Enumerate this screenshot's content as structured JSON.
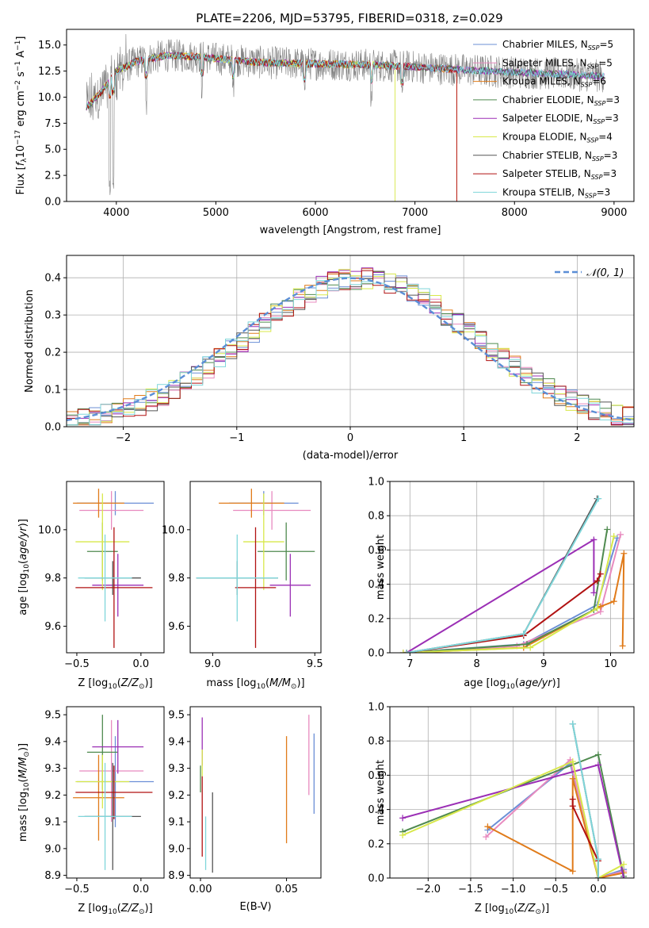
{
  "figure_title": "PLATE=2206, MJD=53795, FIBERID=0318, z=0.029",
  "legend_models": [
    {
      "name": "Chabrier MILES, N",
      "sub": "SSP",
      "tail": "=5",
      "color": "#6b8fd6"
    },
    {
      "name": "Salpeter MILES, N",
      "sub": "SSP",
      "tail": "=5",
      "color": "#e88bbf"
    },
    {
      "name": "Kroupa MILES, N",
      "sub": "SSP",
      "tail": "=6",
      "color": "#e07b1a"
    },
    {
      "name": "Chabrier ELODIE, N",
      "sub": "SSP",
      "tail": "=3",
      "color": "#4f8a4f"
    },
    {
      "name": "Salpeter ELODIE, N",
      "sub": "SSP",
      "tail": "=3",
      "color": "#9b2fb5"
    },
    {
      "name": "Kroupa ELODIE, N",
      "sub": "SSP",
      "tail": "=4",
      "color": "#d8e84a"
    },
    {
      "name": "Chabrier STELIB, N",
      "sub": "SSP",
      "tail": "=3",
      "color": "#555555"
    },
    {
      "name": "Salpeter STELIB, N",
      "sub": "SSP",
      "tail": "=3",
      "color": "#b11212"
    },
    {
      "name": "Kroupa STELIB, N",
      "sub": "SSP",
      "tail": "=3",
      "color": "#7fd6da"
    }
  ],
  "chart_data": [
    {
      "id": "spectrum",
      "type": "line",
      "xlabel": "wavelength [Angstrom, rest frame]",
      "ylabel": "Flux [f_λ 10^-17 erg cm^-2 s^-1 A^-1]",
      "xlim": [
        3500,
        9200
      ],
      "ylim": [
        0,
        16.5
      ],
      "xticks": [
        4000,
        5000,
        6000,
        7000,
        8000,
        9000
      ],
      "yticks": [
        0.0,
        2.5,
        5.0,
        7.5,
        10.0,
        12.5,
        15.0
      ],
      "data_range": [
        3700,
        8900
      ],
      "data_anchors": {
        "x": [
          3700,
          3850,
          4000,
          4200,
          4500,
          4800,
          5100,
          5500,
          6000,
          6500,
          7000,
          7500,
          8000,
          8500,
          8900
        ],
        "y": [
          9.0,
          10.5,
          12.5,
          13.4,
          14.0,
          13.9,
          13.6,
          13.3,
          13.2,
          13.1,
          12.9,
          12.6,
          12.4,
          12.2,
          12.0
        ]
      },
      "model_ends": [
        8900,
        8900,
        7420,
        8900,
        8900,
        6800,
        8900,
        7420,
        8900
      ],
      "grid": false
    },
    {
      "id": "residual-histogram",
      "type": "histogram",
      "xlabel": "(data-model)/error",
      "ylabel": "Normed distribution",
      "xlim": [
        -2.5,
        2.5
      ],
      "ylim": [
        0,
        0.46
      ],
      "xticks": [
        -2,
        -1,
        0,
        1,
        2
      ],
      "yticks": [
        0.0,
        0.1,
        0.2,
        0.3,
        0.4
      ],
      "bin_width": 0.1,
      "reference": {
        "label": "𝒩(0, 1)",
        "mean": 0,
        "sigma": 1,
        "color": "#5b8ed6"
      },
      "grid": true
    },
    {
      "id": "age-vs-z",
      "type": "errorbar",
      "xlabel": "Z [log10(Z/Z☉)]",
      "ylabel": "age [log10(age/yr)]",
      "xlim": [
        -0.58,
        0.18
      ],
      "ylim": [
        9.49,
        10.2
      ],
      "xticks": [
        -0.5,
        0.0
      ],
      "yticks": [
        9.6,
        9.8,
        10.0
      ],
      "points": [
        {
          "x": -0.2,
          "xerr": 0.3,
          "y": 10.11,
          "yerr": 0.05
        },
        {
          "x": -0.23,
          "xerr": 0.25,
          "y": 10.08,
          "yerr": 0.08
        },
        {
          "x": -0.33,
          "xerr": 0.2,
          "y": 10.11,
          "yerr": 0.06
        },
        {
          "x": -0.3,
          "xerr": 0.12,
          "y": 9.91,
          "yerr": 0.12
        },
        {
          "x": -0.18,
          "xerr": 0.2,
          "y": 9.77,
          "yerr": 0.13
        },
        {
          "x": -0.3,
          "xerr": 0.21,
          "y": 9.95,
          "yerr": 0.2
        },
        {
          "x": -0.22,
          "xerr": 0.22,
          "y": 9.8,
          "yerr": 0.07
        },
        {
          "x": -0.21,
          "xerr": 0.3,
          "y": 9.76,
          "yerr": 0.25
        },
        {
          "x": -0.28,
          "xerr": 0.21,
          "y": 9.8,
          "yerr": 0.18
        }
      ]
    },
    {
      "id": "age-vs-mass",
      "type": "errorbar",
      "xlabel": "mass [log10(M/M☉)]",
      "ylabel": "",
      "xlim": [
        8.89,
        9.53
      ],
      "ylim": [
        9.49,
        10.2
      ],
      "xticks": [
        9.0,
        9.5
      ],
      "yticks": [
        9.6,
        9.8,
        10.0
      ],
      "points": [
        {
          "x": 9.25,
          "xerr": 0.17,
          "y": 10.11,
          "yerr": 0.05
        },
        {
          "x": 9.29,
          "xerr": 0.19,
          "y": 10.08,
          "yerr": 0.08
        },
        {
          "x": 9.19,
          "xerr": 0.16,
          "y": 10.11,
          "yerr": 0.06
        },
        {
          "x": 9.36,
          "xerr": 0.14,
          "y": 9.91,
          "yerr": 0.12
        },
        {
          "x": 9.38,
          "xerr": 0.1,
          "y": 9.77,
          "yerr": 0.13
        },
        {
          "x": 9.25,
          "xerr": 0.1,
          "y": 9.95,
          "yerr": 0.2
        },
        {
          "x": 9.12,
          "xerr": 0.2,
          "y": 9.8,
          "yerr": 0.07
        },
        {
          "x": 9.21,
          "xerr": 0.1,
          "y": 9.76,
          "yerr": 0.25
        },
        {
          "x": 9.12,
          "xerr": 0.2,
          "y": 9.8,
          "yerr": 0.18
        }
      ]
    },
    {
      "id": "mass-weight-vs-age",
      "type": "line",
      "xlabel": "age [log10(age/yr)]",
      "ylabel": "mass weight",
      "xlim": [
        6.7,
        10.35
      ],
      "ylim": [
        0,
        1.0
      ],
      "xticks": [
        7,
        8,
        9,
        10
      ],
      "yticks": [
        0.0,
        0.2,
        0.4,
        0.6,
        0.8,
        1.0
      ],
      "grid": true,
      "series": [
        {
          "model": 0,
          "x": [
            6.9,
            8.7,
            9.8,
            10.1
          ],
          "y": [
            0.0,
            0.05,
            0.28,
            0.67
          ]
        },
        {
          "model": 1,
          "x": [
            6.9,
            8.6,
            9.85,
            10.15
          ],
          "y": [
            0.0,
            0.04,
            0.24,
            0.69
          ]
        },
        {
          "model": 2,
          "x": [
            7.0,
            8.7,
            9.85,
            10.05,
            10.2,
            10.18
          ],
          "y": [
            0.0,
            0.03,
            0.27,
            0.3,
            0.58,
            0.04
          ]
        },
        {
          "model": 3,
          "x": [
            6.95,
            8.75,
            9.75,
            9.95
          ],
          "y": [
            0.0,
            0.05,
            0.25,
            0.72
          ]
        },
        {
          "model": 4,
          "x": [
            6.95,
            9.75,
            9.75
          ],
          "y": [
            0.0,
            0.66,
            0.35
          ]
        },
        {
          "model": 5,
          "x": [
            6.9,
            8.8,
            9.8,
            10.05
          ],
          "y": [
            0.0,
            0.03,
            0.26,
            0.68
          ]
        },
        {
          "model": 6,
          "x": [
            6.95,
            8.7,
            9.8
          ],
          "y": [
            0.0,
            0.11,
            0.9
          ]
        },
        {
          "model": 7,
          "x": [
            6.95,
            8.7,
            9.8,
            9.85
          ],
          "y": [
            0.0,
            0.1,
            0.42,
            0.46
          ]
        },
        {
          "model": 8,
          "x": [
            6.95,
            8.7,
            9.82
          ],
          "y": [
            0.0,
            0.11,
            0.9
          ]
        }
      ]
    },
    {
      "id": "mass-vs-z",
      "type": "errorbar",
      "xlabel": "Z [log10(Z/Z☉)]",
      "ylabel": "mass [log10(M/M☉)]",
      "xlim": [
        -0.58,
        0.18
      ],
      "ylim": [
        8.89,
        9.53
      ],
      "xticks": [
        -0.5,
        0.0
      ],
      "yticks": [
        8.9,
        9.0,
        9.1,
        9.2,
        9.3,
        9.4,
        9.5
      ],
      "points": [
        {
          "x": -0.2,
          "xerr": 0.3,
          "y": 9.25,
          "yerr": 0.17
        },
        {
          "x": -0.23,
          "xerr": 0.25,
          "y": 9.29,
          "yerr": 0.19
        },
        {
          "x": -0.33,
          "xerr": 0.2,
          "y": 9.19,
          "yerr": 0.16
        },
        {
          "x": -0.3,
          "xerr": 0.12,
          "y": 9.36,
          "yerr": 0.14
        },
        {
          "x": -0.18,
          "xerr": 0.2,
          "y": 9.38,
          "yerr": 0.1
        },
        {
          "x": -0.3,
          "xerr": 0.21,
          "y": 9.25,
          "yerr": 0.1
        },
        {
          "x": -0.22,
          "xerr": 0.22,
          "y": 9.12,
          "yerr": 0.2
        },
        {
          "x": -0.21,
          "xerr": 0.3,
          "y": 9.21,
          "yerr": 0.1
        },
        {
          "x": -0.28,
          "xerr": 0.21,
          "y": 9.12,
          "yerr": 0.2
        }
      ]
    },
    {
      "id": "mass-vs-ebv",
      "type": "errorbar",
      "xlabel": "E(B-V)",
      "ylabel": "",
      "xlim": [
        -0.006,
        0.07
      ],
      "ylim": [
        8.89,
        9.53
      ],
      "xticks": [
        0.0,
        0.05
      ],
      "yticks": [
        8.9,
        9.0,
        9.1,
        9.2,
        9.3,
        9.4,
        9.5
      ],
      "points": [
        {
          "x": 0.066,
          "xerr": 0,
          "y": 9.28,
          "yerr": 0.15
        },
        {
          "x": 0.063,
          "xerr": 0,
          "y": 9.35,
          "yerr": 0.15
        },
        {
          "x": 0.05,
          "xerr": 0,
          "y": 9.22,
          "yerr": 0.2
        },
        {
          "x": 0.0,
          "xerr": 0,
          "y": 9.26,
          "yerr": 0.05
        },
        {
          "x": 0.001,
          "xerr": 0,
          "y": 9.4,
          "yerr": 0.09
        },
        {
          "x": 0.001,
          "xerr": 0,
          "y": 9.32,
          "yerr": 0.05
        },
        {
          "x": 0.007,
          "xerr": 0,
          "y": 9.06,
          "yerr": 0.15
        },
        {
          "x": 0.001,
          "xerr": 0,
          "y": 9.12,
          "yerr": 0.15
        },
        {
          "x": 0.003,
          "xerr": 0,
          "y": 9.02,
          "yerr": 0.1
        }
      ]
    },
    {
      "id": "mass-weight-vs-z",
      "type": "line",
      "xlabel": "Z [log10(Z/Z☉)]",
      "ylabel": "mass weight",
      "xlim": [
        -2.45,
        0.42
      ],
      "ylim": [
        0,
        1.0
      ],
      "xticks": [
        -2.0,
        -1.5,
        -1.0,
        -0.5,
        0.0
      ],
      "yticks": [
        0.0,
        0.2,
        0.4,
        0.6,
        0.8,
        1.0
      ],
      "grid": true,
      "series": [
        {
          "model": 0,
          "x": [
            -1.3,
            -0.33,
            0.0,
            0.3
          ],
          "y": [
            0.28,
            0.67,
            0.0,
            0.05
          ]
        },
        {
          "model": 1,
          "x": [
            -1.32,
            -0.33,
            0.0,
            0.3
          ],
          "y": [
            0.24,
            0.69,
            0.0,
            0.04
          ]
        },
        {
          "model": 2,
          "x": [
            -1.3,
            -0.3,
            -0.3,
            0.0,
            0.3
          ],
          "y": [
            0.3,
            0.04,
            0.58,
            0.0,
            0.03
          ]
        },
        {
          "model": 3,
          "x": [
            -2.3,
            0.0,
            0.3
          ],
          "y": [
            0.27,
            0.72,
            0.01
          ]
        },
        {
          "model": 4,
          "x": [
            -2.3,
            0.0,
            0.3
          ],
          "y": [
            0.35,
            0.66,
            0.0
          ]
        },
        {
          "model": 5,
          "x": [
            -2.3,
            -0.3,
            0.0,
            0.3
          ],
          "y": [
            0.25,
            0.68,
            0.0,
            0.08
          ]
        },
        {
          "model": 6,
          "x": [
            -0.3,
            0.0,
            0.0
          ],
          "y": [
            0.9,
            0.11,
            0.0
          ]
        },
        {
          "model": 7,
          "x": [
            -0.3,
            -0.3,
            0.0,
            0.0
          ],
          "y": [
            0.46,
            0.42,
            0.1,
            0.0
          ]
        },
        {
          "model": 8,
          "x": [
            -0.3,
            0.0,
            0.0
          ],
          "y": [
            0.9,
            0.11,
            0.0
          ]
        }
      ]
    }
  ]
}
